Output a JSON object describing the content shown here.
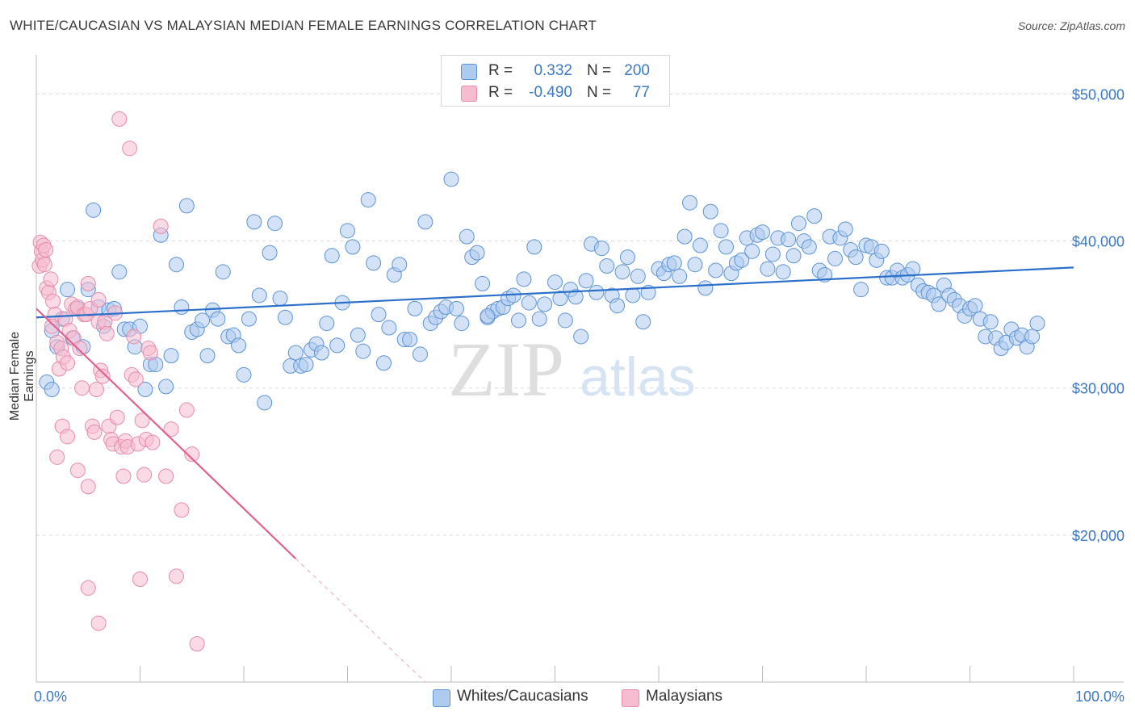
{
  "title": "WHITE/CAUCASIAN VS MALAYSIAN MEDIAN FEMALE EARNINGS CORRELATION CHART",
  "source": "Source: ZipAtlas.com",
  "watermark": {
    "zip": "ZIP",
    "atlas": "atlas"
  },
  "legend": {
    "rows": [
      {
        "r_label": "R =",
        "r_value": "0.332",
        "n_label": "N =",
        "n_value": "200",
        "color": "#aecbee"
      },
      {
        "r_label": "R =",
        "r_value": "-0.490",
        "n_label": "N =",
        "n_value": "77",
        "color": "#f6bcd0"
      }
    ]
  },
  "bottom_legend": [
    {
      "label": "Whites/Caucasians",
      "color": "#aecbee"
    },
    {
      "label": "Malaysians",
      "color": "#f6bcd0"
    }
  ],
  "colors": {
    "blue_fill": "#aecbee",
    "blue_stroke": "#5b93d6",
    "blue_line": "#2a6fc9",
    "pink_fill": "#f6bcd0",
    "pink_stroke": "#e88aaa",
    "pink_line": "#e0608e",
    "tick_label": "#3b78c4",
    "grid": "#d9d9d9"
  },
  "chart_data": {
    "type": "scatter",
    "title": "WHITE/CAUCASIAN VS MALAYSIAN MEDIAN FEMALE EARNINGS CORRELATION CHART",
    "xlabel": "",
    "ylabel": "Median Female Earnings",
    "xlim": [
      0,
      100
    ],
    "ylim": [
      10000,
      52000
    ],
    "x_tick_labels": [
      "0.0%",
      "100.0%"
    ],
    "y_ticks": [
      {
        "value": 20000,
        "label": "$20,000"
      },
      {
        "value": 30000,
        "label": "$30,000"
      },
      {
        "value": 40000,
        "label": "$40,000"
      },
      {
        "value": 50000,
        "label": "$50,000"
      }
    ],
    "grid": "horizontal dashed",
    "series": [
      {
        "name": "Whites/Caucasians",
        "trend": {
          "x": [
            0,
            100
          ],
          "y": [
            34800,
            38200
          ]
        },
        "points": [
          [
            1,
            30400
          ],
          [
            1.5,
            33900
          ],
          [
            1.5,
            29900
          ],
          [
            2,
            32800
          ],
          [
            2.5,
            34700
          ],
          [
            3,
            36700
          ],
          [
            3.5,
            33400
          ],
          [
            4,
            35400
          ],
          [
            4.5,
            32800
          ],
          [
            5,
            36700
          ],
          [
            5.5,
            42100
          ],
          [
            6,
            35500
          ],
          [
            6.5,
            34200
          ],
          [
            7,
            35300
          ],
          [
            7.5,
            35400
          ],
          [
            8,
            37900
          ],
          [
            8.5,
            34000
          ],
          [
            9,
            34000
          ],
          [
            9.5,
            32800
          ],
          [
            10,
            34200
          ],
          [
            10.5,
            29900
          ],
          [
            11,
            31600
          ],
          [
            11.5,
            31600
          ],
          [
            12,
            40400
          ],
          [
            12.5,
            30100
          ],
          [
            13,
            32200
          ],
          [
            13.5,
            38400
          ],
          [
            14,
            35500
          ],
          [
            14.5,
            42400
          ],
          [
            15,
            33800
          ],
          [
            15.5,
            34000
          ],
          [
            16,
            34600
          ],
          [
            16.5,
            32200
          ],
          [
            17,
            35300
          ],
          [
            17.5,
            34700
          ],
          [
            18,
            37900
          ],
          [
            18.5,
            33500
          ],
          [
            19,
            33600
          ],
          [
            19.5,
            32900
          ],
          [
            20,
            30900
          ],
          [
            20.5,
            34700
          ],
          [
            21,
            41300
          ],
          [
            21.5,
            36300
          ],
          [
            22,
            29000
          ],
          [
            22.5,
            39200
          ],
          [
            23,
            41200
          ],
          [
            23.5,
            36100
          ],
          [
            24,
            34800
          ],
          [
            24.5,
            31500
          ],
          [
            25,
            32400
          ],
          [
            25.5,
            31500
          ],
          [
            26,
            31600
          ],
          [
            26.5,
            32600
          ],
          [
            27,
            33000
          ],
          [
            27.5,
            32400
          ],
          [
            28,
            34400
          ],
          [
            28.5,
            39000
          ],
          [
            29,
            32900
          ],
          [
            29.5,
            35800
          ],
          [
            30,
            40700
          ],
          [
            30.5,
            39600
          ],
          [
            31,
            33600
          ],
          [
            31.5,
            32500
          ],
          [
            32,
            42800
          ],
          [
            32.5,
            38500
          ],
          [
            33,
            35000
          ],
          [
            33.5,
            31700
          ],
          [
            34,
            34100
          ],
          [
            34.5,
            37700
          ],
          [
            35,
            38400
          ],
          [
            35.5,
            33300
          ],
          [
            36,
            33300
          ],
          [
            36.5,
            35400
          ],
          [
            37,
            32300
          ],
          [
            37.5,
            41300
          ],
          [
            38,
            34400
          ],
          [
            38.5,
            34800
          ],
          [
            39,
            35200
          ],
          [
            39.5,
            35500
          ],
          [
            40,
            44200
          ],
          [
            40.5,
            35400
          ],
          [
            41,
            34400
          ],
          [
            41.5,
            40300
          ],
          [
            42,
            38900
          ],
          [
            42.5,
            39200
          ],
          [
            43,
            37100
          ],
          [
            43.5,
            34800
          ],
          [
            44,
            35200
          ],
          [
            44.5,
            35400
          ],
          [
            45,
            35500
          ],
          [
            45.5,
            36100
          ],
          [
            46,
            36300
          ],
          [
            46.5,
            34600
          ],
          [
            47,
            37400
          ],
          [
            47.5,
            35800
          ],
          [
            48,
            39600
          ],
          [
            48.5,
            34700
          ],
          [
            49,
            35700
          ],
          [
            50,
            37200
          ],
          [
            50.5,
            36100
          ],
          [
            51,
            34600
          ],
          [
            51.5,
            36700
          ],
          [
            52,
            36200
          ],
          [
            52.5,
            33500
          ],
          [
            53,
            37300
          ],
          [
            53.5,
            39800
          ],
          [
            54,
            36500
          ],
          [
            54.5,
            39500
          ],
          [
            55,
            38300
          ],
          [
            55.5,
            36300
          ],
          [
            56,
            35600
          ],
          [
            56.5,
            37900
          ],
          [
            57,
            38900
          ],
          [
            57.5,
            36300
          ],
          [
            58,
            37600
          ],
          [
            58.5,
            34500
          ],
          [
            59,
            36500
          ],
          [
            60,
            38100
          ],
          [
            60.5,
            37800
          ],
          [
            61,
            38400
          ],
          [
            61.5,
            38500
          ],
          [
            62,
            37600
          ],
          [
            62.5,
            40300
          ],
          [
            63,
            42600
          ],
          [
            63.5,
            38400
          ],
          [
            64,
            39700
          ],
          [
            64.5,
            36800
          ],
          [
            65,
            42000
          ],
          [
            65.5,
            38000
          ],
          [
            66,
            40700
          ],
          [
            66.5,
            39600
          ],
          [
            67,
            37800
          ],
          [
            67.5,
            38500
          ],
          [
            68,
            38700
          ],
          [
            68.5,
            40200
          ],
          [
            69,
            39300
          ],
          [
            69.5,
            40400
          ],
          [
            70,
            40600
          ],
          [
            70.5,
            38100
          ],
          [
            71,
            39100
          ],
          [
            71.5,
            40200
          ],
          [
            72,
            37900
          ],
          [
            72.5,
            40100
          ],
          [
            73,
            39000
          ],
          [
            73.5,
            41200
          ],
          [
            74,
            40000
          ],
          [
            74.5,
            39600
          ],
          [
            75,
            41700
          ],
          [
            75.5,
            38000
          ],
          [
            76,
            37700
          ],
          [
            76.5,
            40300
          ],
          [
            77,
            38800
          ],
          [
            77.5,
            40200
          ],
          [
            78,
            40800
          ],
          [
            78.5,
            39400
          ],
          [
            79,
            38900
          ],
          [
            79.5,
            36700
          ],
          [
            80,
            39700
          ],
          [
            80.5,
            39600
          ],
          [
            81,
            38700
          ],
          [
            81.5,
            39300
          ],
          [
            82,
            37500
          ],
          [
            82.5,
            37500
          ],
          [
            83,
            38000
          ],
          [
            83.5,
            37500
          ],
          [
            84,
            37700
          ],
          [
            84.5,
            38100
          ],
          [
            85,
            37000
          ],
          [
            85.5,
            36600
          ],
          [
            86,
            36500
          ],
          [
            86.5,
            36300
          ],
          [
            87,
            35700
          ],
          [
            87.5,
            37000
          ],
          [
            88,
            36300
          ],
          [
            88.5,
            36000
          ],
          [
            89,
            35600
          ],
          [
            89.5,
            34900
          ],
          [
            90,
            35400
          ],
          [
            90.5,
            35600
          ],
          [
            91,
            34700
          ],
          [
            91.5,
            33500
          ],
          [
            92,
            34500
          ],
          [
            92.5,
            33400
          ],
          [
            93,
            32700
          ],
          [
            93.5,
            33100
          ],
          [
            94,
            34000
          ],
          [
            94.5,
            33400
          ],
          [
            95,
            33600
          ],
          [
            95.5,
            32800
          ],
          [
            96,
            33500
          ],
          [
            96.5,
            34400
          ],
          [
            43.5,
            34900
          ]
        ]
      },
      {
        "name": "Malaysians",
        "trend": {
          "x": [
            0,
            25
          ],
          "y": [
            35400,
            18400
          ]
        },
        "trend_dashed": {
          "x": [
            25,
            37.5
          ],
          "y": [
            18400,
            10000
          ]
        },
        "points": [
          [
            0.3,
            38300
          ],
          [
            0.4,
            39900
          ],
          [
            0.5,
            39300
          ],
          [
            0.6,
            38700
          ],
          [
            0.7,
            39700
          ],
          [
            0.8,
            38400
          ],
          [
            0.9,
            39400
          ],
          [
            1,
            36800
          ],
          [
            1.2,
            36500
          ],
          [
            1.4,
            37400
          ],
          [
            1.6,
            35900
          ],
          [
            1.8,
            35000
          ],
          [
            2,
            33100
          ],
          [
            2.2,
            31300
          ],
          [
            2.4,
            32700
          ],
          [
            2.6,
            32100
          ],
          [
            2.8,
            34700
          ],
          [
            3,
            31700
          ],
          [
            3.2,
            33900
          ],
          [
            3.4,
            35700
          ],
          [
            3.6,
            33400
          ],
          [
            3.8,
            35400
          ],
          [
            4,
            35500
          ],
          [
            4.2,
            32700
          ],
          [
            4.4,
            30000
          ],
          [
            4.6,
            35000
          ],
          [
            4.8,
            35000
          ],
          [
            5,
            37100
          ],
          [
            5.2,
            35400
          ],
          [
            5.4,
            27400
          ],
          [
            5.6,
            27000
          ],
          [
            5.8,
            29900
          ],
          [
            6,
            34500
          ],
          [
            6.2,
            31200
          ],
          [
            6.4,
            30800
          ],
          [
            6.6,
            34500
          ],
          [
            6.8,
            33700
          ],
          [
            7,
            27400
          ],
          [
            7.2,
            26500
          ],
          [
            7.4,
            26200
          ],
          [
            7.6,
            35100
          ],
          [
            7.8,
            28000
          ],
          [
            8,
            48300
          ],
          [
            8.2,
            26000
          ],
          [
            8.4,
            24000
          ],
          [
            8.6,
            26400
          ],
          [
            8.8,
            26000
          ],
          [
            9,
            46300
          ],
          [
            9.2,
            30900
          ],
          [
            9.4,
            33500
          ],
          [
            9.6,
            30600
          ],
          [
            9.8,
            26200
          ],
          [
            10,
            17000
          ],
          [
            10.2,
            27800
          ],
          [
            10.4,
            24100
          ],
          [
            10.6,
            26500
          ],
          [
            10.8,
            32700
          ],
          [
            11,
            32400
          ],
          [
            11.2,
            26300
          ],
          [
            12,
            41000
          ],
          [
            12.5,
            24000
          ],
          [
            13,
            27200
          ],
          [
            13.5,
            17200
          ],
          [
            14,
            21700
          ],
          [
            14.5,
            28500
          ],
          [
            15,
            25500
          ],
          [
            15.5,
            12600
          ],
          [
            5,
            16400
          ],
          [
            6,
            14000
          ],
          [
            2.5,
            27400
          ],
          [
            3,
            26700
          ],
          [
            4,
            24400
          ],
          [
            5,
            23300
          ],
          [
            6,
            36000
          ],
          [
            2,
            25300
          ],
          [
            1.5,
            34200
          ]
        ]
      }
    ]
  }
}
